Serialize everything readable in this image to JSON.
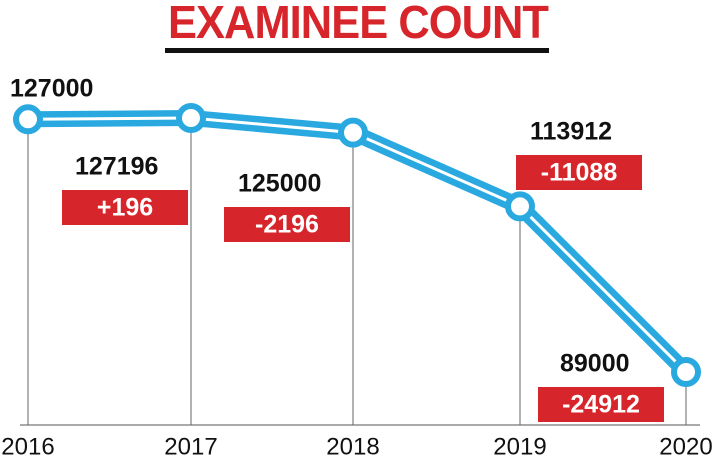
{
  "chart_data": {
    "type": "line",
    "title": "EXAMINEE COUNT",
    "categories": [
      "2016",
      "2017",
      "2018",
      "2019",
      "2020"
    ],
    "values": [
      127000,
      127196,
      125000,
      113912,
      89000
    ],
    "color": "#2aa9e0",
    "changes": [
      {
        "value": 196,
        "label": "+196"
      },
      {
        "value": -2196,
        "label": "-2196"
      },
      {
        "value": -11088,
        "label": "-11088"
      },
      {
        "value": -24912,
        "label": "-24912"
      }
    ],
    "change_color": "#d7262b"
  }
}
